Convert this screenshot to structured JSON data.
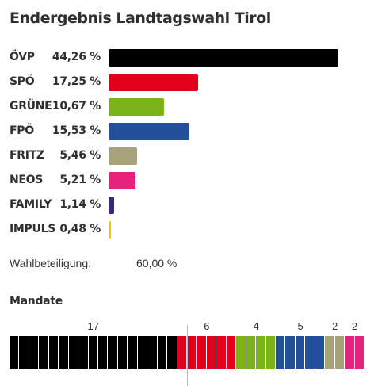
{
  "title": "Endergebnis Landtagswahl Tirol",
  "chart_data": {
    "type": "bar",
    "orientation": "horizontal",
    "title": "Endergebnis Landtagswahl Tirol",
    "categories": [
      "ÖVP",
      "SPÖ",
      "GRÜNE",
      "FPÖ",
      "FRITZ",
      "NEOS",
      "FAMILY",
      "IMPULS"
    ],
    "values": [
      44.26,
      17.25,
      10.67,
      15.53,
      5.46,
      5.21,
      1.14,
      0.48
    ],
    "value_labels": [
      "44,26 %",
      "17,25 %",
      "10,67 %",
      "15,53 %",
      "5,46 %",
      "5,21 %",
      "1,14 %",
      "0,48 %"
    ],
    "colors": [
      "#000000",
      "#e3001b",
      "#7ab317",
      "#234f9b",
      "#a8a27a",
      "#e5237c",
      "#3d2582",
      "#f5c400"
    ],
    "xlim": [
      0,
      44.26
    ],
    "grid": false
  },
  "turnout": {
    "label": "Wahlbeteiligung:",
    "value": "60,00 %"
  },
  "mandates": {
    "title": "Mandate",
    "total": 36,
    "parties": [
      {
        "party": "ÖVP",
        "seats": 17,
        "label": "17",
        "color": "#000000"
      },
      {
        "party": "SPÖ",
        "seats": 6,
        "label": "6",
        "color": "#e3001b"
      },
      {
        "party": "GRÜNE",
        "seats": 4,
        "label": "4",
        "color": "#7ab317"
      },
      {
        "party": "FPÖ",
        "seats": 5,
        "label": "5",
        "color": "#234f9b"
      },
      {
        "party": "FRITZ",
        "seats": 2,
        "label": "2",
        "color": "#a8a27a"
      },
      {
        "party": "NEOS",
        "seats": 2,
        "label": "2",
        "color": "#e5237c"
      }
    ]
  }
}
